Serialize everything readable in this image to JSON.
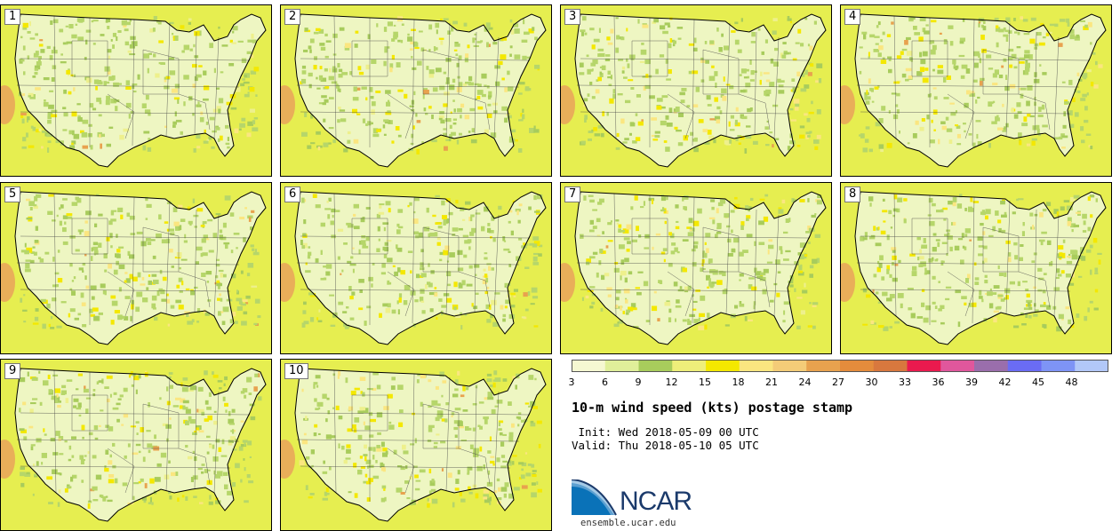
{
  "title": "10-m wind speed (kts) postage stamp",
  "init_text": " Init: Wed 2018-05-09 00 UTC",
  "valid_text": "Valid: Thu 2018-05-10 05 UTC",
  "logo_text": "NCAR",
  "logo_url": "ensemble.ucar.edu",
  "members": [
    "1",
    "2",
    "3",
    "4",
    "5",
    "6",
    "7",
    "8",
    "9",
    "10"
  ],
  "colorbar": {
    "ticks": [
      "3",
      "6",
      "9",
      "12",
      "15",
      "18",
      "21",
      "24",
      "27",
      "30",
      "33",
      "36",
      "39",
      "42",
      "45",
      "48"
    ],
    "colors": [
      "#f6f8d2",
      "#e0ef9a",
      "#a8cc5c",
      "#eeee7a",
      "#f4e800",
      "#fbe680",
      "#f4cc78",
      "#e8a24e",
      "#e48c3c",
      "#d8783e",
      "#ea1a4e",
      "#e0579c",
      "#9a6eac",
      "#6a6cf4",
      "#7e94f6",
      "#b2c8f8"
    ]
  }
}
